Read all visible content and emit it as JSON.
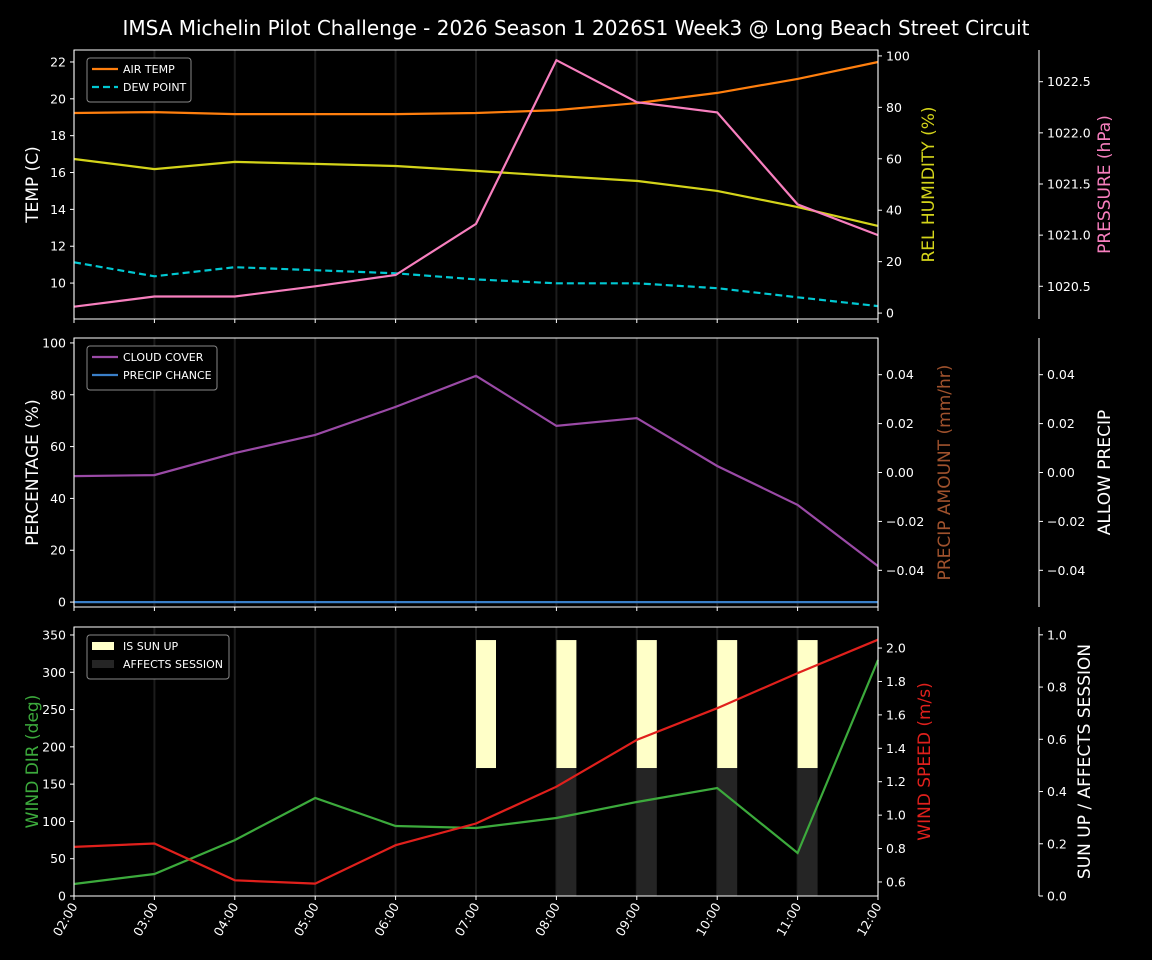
{
  "title": "IMSA Michelin Pilot Challenge - 2026 Season 1 2026S1 Week3 @ Long Beach Street Circuit",
  "colors": {
    "background": "#000000",
    "air_temp": "#ff7f0e",
    "dew_point": "#00c8d2",
    "humidity": "#d4d41a",
    "pressure": "#f77fbe",
    "cloud_cover": "#9a4aa6",
    "precip_chance": "#3a7fc8",
    "precip_amount_axis": "#a0522d",
    "wind_dir": "#3caa3c",
    "wind_speed": "#e0201c",
    "sun_up": "#ffffc8",
    "affects_session": "#252525"
  },
  "chart_data": [
    {
      "type": "line",
      "x": [
        "02:00",
        "03:00",
        "04:00",
        "05:00",
        "06:00",
        "07:00",
        "08:00",
        "09:00",
        "10:00",
        "11:00",
        "12:00"
      ],
      "grid": "vertical",
      "legend": "top-left",
      "axes": [
        {
          "label": "TEMP (C)",
          "side": "left",
          "ylim": [
            8.05,
            22.65
          ],
          "ticks": [
            "10",
            "12",
            "14",
            "16",
            "18",
            "20",
            "22"
          ]
        },
        {
          "label": "REL HUMIDITY (%)",
          "side": "right",
          "ylim": [
            -2.3,
            102.3
          ],
          "ticks": [
            "0",
            "20",
            "40",
            "60",
            "80",
            "100"
          ]
        },
        {
          "label": "PRESSURE (hPa)",
          "side": "right-outer",
          "ylim": [
            1020.18,
            1022.81
          ],
          "ticks": [
            "1020.5",
            "1021.0",
            "1021.5",
            "1022.0",
            "1022.5"
          ]
        }
      ],
      "series": [
        {
          "name": "AIR TEMP",
          "axis": 0,
          "style": "solid",
          "values": [
            19.23,
            19.28,
            19.17,
            19.17,
            19.17,
            19.23,
            19.39,
            19.77,
            20.32,
            21.08,
            22.0
          ]
        },
        {
          "name": "DEW POINT",
          "axis": 0,
          "style": "dashed",
          "values": [
            11.13,
            10.37,
            10.86,
            10.7,
            10.53,
            10.2,
            9.99,
            9.99,
            9.72,
            9.23,
            8.75
          ]
        },
        {
          "axis": 1,
          "style": "solid",
          "values": [
            59.9,
            56.0,
            58.8,
            58.0,
            57.2,
            55.3,
            53.3,
            51.4,
            47.5,
            41.2,
            33.9
          ]
        },
        {
          "axis": 2,
          "style": "solid",
          "values": [
            1020.3,
            1020.4,
            1020.4,
            1020.5,
            1020.61,
            1021.11,
            1022.71,
            1022.3,
            1022.2,
            1021.3,
            1021.0
          ]
        }
      ]
    },
    {
      "type": "line",
      "x": [
        "02:00",
        "03:00",
        "04:00",
        "05:00",
        "06:00",
        "07:00",
        "08:00",
        "09:00",
        "10:00",
        "11:00",
        "12:00"
      ],
      "grid": "vertical",
      "legend": "top-left",
      "axes": [
        {
          "label": "PERCENTAGE (%)",
          "side": "left",
          "ylim": [
            -1.9,
            101.9
          ],
          "ticks": [
            "0",
            "20",
            "40",
            "60",
            "80",
            "100"
          ]
        },
        {
          "label": "PRECIP AMOUNT (mm/hr)",
          "side": "right",
          "ylim": [
            -0.055,
            0.055
          ],
          "ticks": [
            "−0.04",
            "−0.02",
            "0.00",
            "0.02",
            "0.04"
          ]
        },
        {
          "label": "ALLOW PRECIP",
          "side": "right-outer",
          "ylim": [
            -0.055,
            0.055
          ],
          "ticks": [
            "−0.04",
            "−0.02",
            "0.00",
            "0.02",
            "0.04"
          ]
        }
      ],
      "series": [
        {
          "name": "CLOUD COVER",
          "axis": 0,
          "style": "solid",
          "values": [
            48.6,
            49.0,
            57.5,
            64.5,
            75.3,
            87.3,
            68.0,
            71.0,
            52.5,
            37.5,
            13.9
          ]
        },
        {
          "name": "PRECIP CHANCE",
          "axis": 0,
          "style": "solid",
          "values": [
            0,
            0,
            0,
            0,
            0,
            0,
            0,
            0,
            0,
            0,
            0
          ]
        }
      ]
    },
    {
      "type": "line",
      "x": [
        "02:00",
        "03:00",
        "04:00",
        "05:00",
        "06:00",
        "07:00",
        "08:00",
        "09:00",
        "10:00",
        "11:00",
        "12:00"
      ],
      "grid": "vertical",
      "legend": "top-left",
      "axes": [
        {
          "label": "WIND DIR (deg)",
          "side": "left",
          "ylim": [
            0,
            360.7
          ],
          "ticks": [
            "0",
            "50",
            "100",
            "150",
            "200",
            "250",
            "300",
            "350"
          ]
        },
        {
          "label": "WIND SPEED (m/s)",
          "side": "right",
          "ylim": [
            0.516,
            2.126
          ],
          "ticks": [
            "0.6",
            "0.8",
            "1.0",
            "1.2",
            "1.4",
            "1.6",
            "1.8",
            "2.0"
          ]
        },
        {
          "label": "SUN UP / AFFECTS SESSION",
          "side": "right-outer",
          "ylim": [
            0,
            1.03
          ],
          "ticks": [
            "0.0",
            "0.2",
            "0.4",
            "0.6",
            "0.8",
            "1.0"
          ]
        }
      ],
      "series": [
        {
          "axis": 0,
          "style": "solid",
          "values": [
            16.1,
            29.5,
            75.0,
            131.4,
            93.9,
            91.2,
            104.6,
            126.0,
            144.8,
            57.7,
            316.5
          ]
        },
        {
          "axis": 1,
          "style": "solid",
          "values": [
            0.81,
            0.83,
            0.61,
            0.59,
            0.82,
            0.95,
            1.17,
            1.45,
            1.64,
            1.85,
            2.05
          ]
        }
      ],
      "bars": [
        {
          "name": "IS SUN UP",
          "axis": 2,
          "values": [
            0,
            0,
            0,
            0,
            0,
            1,
            1,
            1,
            1,
            1,
            0
          ]
        },
        {
          "name": "AFFECTS SESSION",
          "axis": 2,
          "values": [
            0,
            0,
            0,
            0,
            0,
            0,
            1,
            1,
            1,
            1,
            0
          ]
        }
      ]
    }
  ]
}
